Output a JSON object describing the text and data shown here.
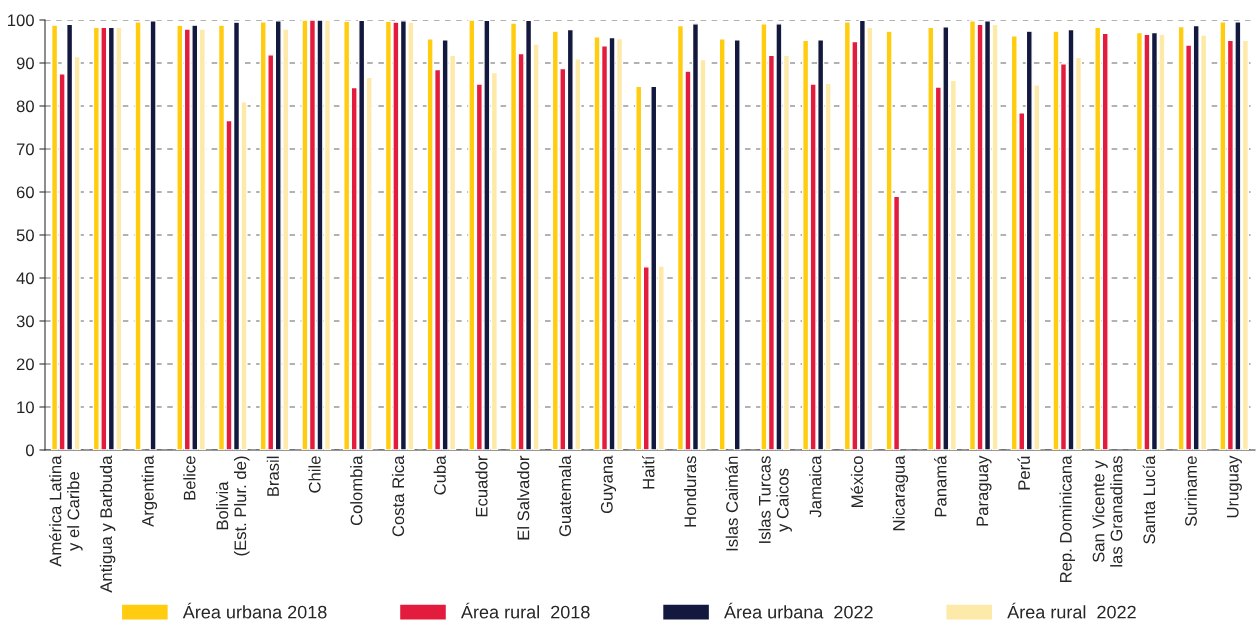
{
  "chart_data": {
    "type": "bar",
    "categories": [
      "América Latina\ny el Caribe",
      "Antigua y Barbuda",
      "Argentina",
      "Belice",
      "Bolivia\n(Est. Plur. de)",
      "Brasil",
      "Chile",
      "Colombia",
      "Costa Rica",
      "Cuba",
      "Ecuador",
      "El Salvador",
      "Guatemala",
      "Guyana",
      "Haití",
      "Honduras",
      "Islas Caimán",
      "Islas Turcas\ny Caicos",
      "Jamaica",
      "México",
      "Nicaragua",
      "Panamá",
      "Paraguay",
      "Perú",
      "Rep. Dominicana",
      "San Vicente y\nlas Granadinas",
      "Santa Lucía",
      "Suriname",
      "Uruguay"
    ],
    "series": [
      {
        "name": "Área urbana 2018",
        "color": "#ffcc10",
        "values": [
          98.8,
          98.3,
          99.6,
          98.8,
          98.8,
          99.6,
          100,
          99.7,
          99.7,
          95.6,
          100,
          99.3,
          97.4,
          96.1,
          84.6,
          98.7,
          95.6,
          99.1,
          95.3,
          99.6,
          97.4,
          98.3,
          99.8,
          96.3,
          97.4,
          98.3,
          97.1,
          98.5,
          99.6
        ]
      },
      {
        "name": "Área rural  2018",
        "color": "#e31b3c",
        "values": [
          87.5,
          98.3,
          null,
          97.9,
          76.6,
          91.9,
          100,
          84.3,
          99.5,
          88.5,
          85.1,
          92.2,
          88.7,
          94.0,
          42.6,
          88.1,
          null,
          91.8,
          85.1,
          95.0,
          59.0,
          84.4,
          99.0,
          78.4,
          89.8,
          96.9,
          96.7,
          94.2,
          95.3
        ]
      },
      {
        "name": "Área urbana  2022",
        "color": "#13183f",
        "values": [
          99.0,
          98.3,
          99.8,
          98.8,
          99.5,
          99.8,
          100,
          99.9,
          99.8,
          95.4,
          99.9,
          99.9,
          97.8,
          95.9,
          84.6,
          99.1,
          95.4,
          99.1,
          95.4,
          99.9,
          null,
          98.4,
          99.8,
          97.4,
          97.8,
          null,
          97.1,
          98.7,
          99.6
        ]
      },
      {
        "name": "Área rural  2022",
        "color": "#fde9a8",
        "values": [
          91.5,
          98.3,
          null,
          97.9,
          81.0,
          97.9,
          100,
          86.7,
          99.5,
          91.8,
          87.8,
          94.4,
          91.0,
          95.7,
          42.8,
          90.8,
          null,
          91.8,
          85.3,
          98.3,
          null,
          86.0,
          99.0,
          84.9,
          91.3,
          null,
          96.7,
          96.5,
          95.3
        ]
      }
    ],
    "ylim": [
      0,
      100
    ],
    "yticks": [
      0,
      10,
      20,
      30,
      40,
      50,
      60,
      70,
      80,
      90,
      100
    ],
    "grid": "y",
    "legend": "bottom"
  }
}
